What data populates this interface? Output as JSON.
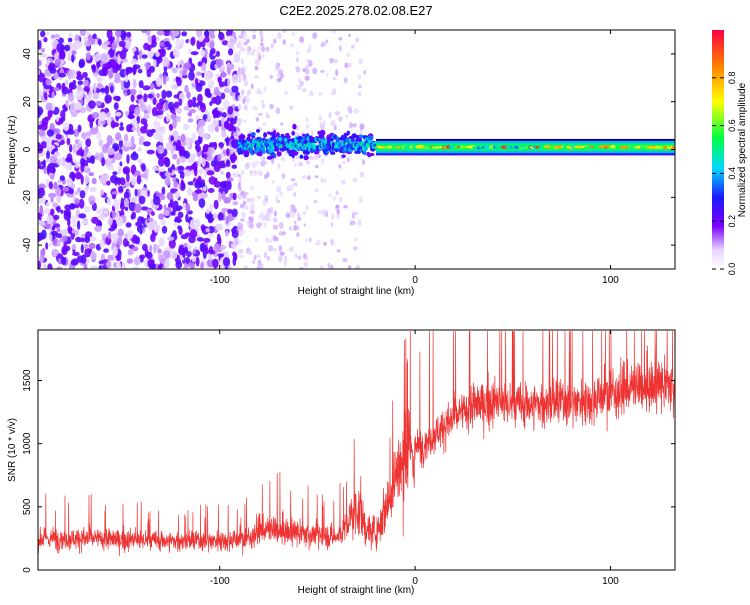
{
  "title": "C2E2.2025.278.02.08.E27",
  "chart_data": [
    {
      "type": "heatmap",
      "title": "C2E2.2025.278.02.08.E27",
      "xlabel": "Height of straight line (km)",
      "ylabel": "Frequency (Hz)",
      "xlim": [
        -193,
        133
      ],
      "ylim": [
        -50,
        50
      ],
      "x_ticks": [
        -100,
        0,
        100
      ],
      "y_ticks": [
        -40,
        -20,
        0,
        20,
        40
      ],
      "colorbar": {
        "label": "Normalized spectral amplitude",
        "range": [
          0,
          1
        ],
        "ticks": [
          0.0,
          0.2,
          0.4,
          0.6,
          0.8
        ],
        "tick_labels": [
          "0.0",
          "0.2",
          "0.4",
          "0.6",
          "0.8"
        ]
      },
      "regions": [
        {
          "name": "diffuse noise",
          "x_range": [
            -193,
            -90
          ],
          "freq_range": [
            -50,
            50
          ],
          "amplitude": 0.15
        },
        {
          "name": "faint scatter",
          "x_range": [
            -90,
            -25
          ],
          "freq_range": [
            -50,
            50
          ],
          "amplitude": 0.05
        },
        {
          "name": "tone band (broad)",
          "x_range": [
            -90,
            -20
          ],
          "center_hz": 2,
          "half_width_hz": 6,
          "amplitude": 0.4
        },
        {
          "name": "tone band (narrow)",
          "x_range": [
            -20,
            133
          ],
          "center_hz": 1,
          "half_width_hz": 3,
          "amplitude": 0.75
        }
      ]
    },
    {
      "type": "line",
      "title": "",
      "xlabel": "Height of straight line (km)",
      "ylabel": "SNR (10 * v/v)",
      "xlim": [
        -193,
        133
      ],
      "ylim": [
        0,
        1900
      ],
      "x_ticks": [
        -100,
        0,
        100
      ],
      "y_ticks": [
        0,
        500,
        1000,
        1500
      ],
      "color": "#ee3333",
      "series": [
        {
          "name": "SNR",
          "x": [
            -193,
            -170,
            -150,
            -130,
            -110,
            -95,
            -85,
            -80,
            -70,
            -60,
            -50,
            -40,
            -35,
            -30,
            -25,
            -20,
            -15,
            -10,
            -5,
            0,
            5,
            10,
            20,
            30,
            40,
            50,
            60,
            70,
            80,
            90,
            100,
            110,
            120,
            133
          ],
          "y": [
            250,
            250,
            240,
            230,
            230,
            240,
            250,
            320,
            310,
            290,
            280,
            260,
            350,
            500,
            320,
            300,
            500,
            760,
            850,
            960,
            1000,
            1080,
            1200,
            1300,
            1330,
            1300,
            1310,
            1320,
            1330,
            1350,
            1400,
            1440,
            1450,
            1470
          ]
        }
      ]
    }
  ]
}
